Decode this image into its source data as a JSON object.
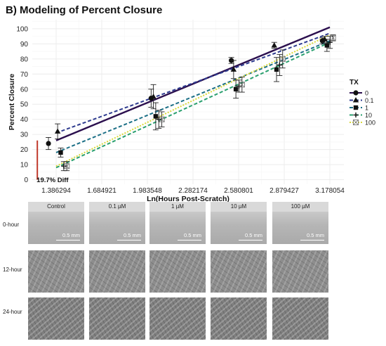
{
  "title": "B) Modeling of Percent Closure",
  "chart_data": {
    "type": "scatter",
    "xlabel": "Ln(Hours Post-Scratch)",
    "ylabel": "Percent Closure",
    "x_ticks": [
      "1.386294",
      "1.684921",
      "1.983548",
      "2.282174",
      "2.580801",
      "2.879427",
      "3.178054"
    ],
    "x_tick_values": [
      1.386294,
      1.684921,
      1.983548,
      2.282174,
      2.580801,
      2.879427,
      3.178054
    ],
    "y_ticks": [
      "0",
      "10",
      "20",
      "30",
      "40",
      "50",
      "60",
      "70",
      "80",
      "90",
      "100"
    ],
    "xlim": [
      1.23,
      3.27
    ],
    "ylim": [
      -3,
      106
    ],
    "grid": true,
    "legend_title": "TX",
    "legend_position": "right",
    "annotation": "19.7% Diff",
    "annotation_segment": {
      "x": 1.263,
      "y_from": 0,
      "y_to": 26
    },
    "series": [
      {
        "name": "0",
        "marker": "circle",
        "color": "#2b0f4e",
        "line_style": "solid",
        "fit": [
          [
            1.386294,
            26.0
          ],
          [
            3.178054,
            101.0
          ]
        ],
        "points": [
          {
            "x": 1.336,
            "y": 24,
            "err": 4
          },
          {
            "x": 2.008,
            "y": 54,
            "err": 6
          },
          {
            "x": 2.533,
            "y": 79,
            "err": 2
          },
          {
            "x": 3.129,
            "y": 92,
            "err": 2
          }
        ]
      },
      {
        "name": "0.1",
        "marker": "triangle",
        "color": "#2e3b8f",
        "line_style": "dashed",
        "fit": [
          [
            1.386294,
            31.0
          ],
          [
            3.178054,
            97.0
          ]
        ],
        "points": [
          {
            "x": 1.396,
            "y": 32,
            "err": 5
          },
          {
            "x": 2.023,
            "y": 55,
            "err": 8
          },
          {
            "x": 2.548,
            "y": 73,
            "err": 6
          },
          {
            "x": 2.814,
            "y": 89,
            "err": 2
          },
          {
            "x": 3.144,
            "y": 93,
            "err": 2
          }
        ]
      },
      {
        "name": "1",
        "marker": "square",
        "color": "#1b6f86",
        "line_style": "dashed",
        "fit": [
          [
            1.386294,
            18.0
          ],
          [
            3.178054,
            92.0
          ]
        ],
        "points": [
          {
            "x": 1.416,
            "y": 18,
            "err": 3
          },
          {
            "x": 2.038,
            "y": 42,
            "err": 9
          },
          {
            "x": 2.563,
            "y": 60,
            "err": 6
          },
          {
            "x": 2.829,
            "y": 73,
            "err": 8
          },
          {
            "x": 3.159,
            "y": 89,
            "err": 4
          }
        ]
      },
      {
        "name": "10",
        "marker": "plus",
        "color": "#2aa06f",
        "line_style": "dashed",
        "fit": [
          [
            1.386294,
            8.0
          ],
          [
            3.178054,
            91.0
          ]
        ],
        "points": [
          {
            "x": 1.436,
            "y": 9,
            "err": 3
          },
          {
            "x": 2.058,
            "y": 40,
            "err": 6
          },
          {
            "x": 2.583,
            "y": 62,
            "err": 4
          },
          {
            "x": 2.849,
            "y": 76,
            "err": 7
          },
          {
            "x": 3.179,
            "y": 91,
            "err": 4
          }
        ]
      },
      {
        "name": "100",
        "marker": "boxx",
        "color": "#d9d93a",
        "line_style": "dotted",
        "fit": [
          [
            1.386294,
            9.0
          ],
          [
            3.178054,
            96.0
          ]
        ],
        "points": [
          {
            "x": 1.456,
            "y": 9,
            "err": 3
          },
          {
            "x": 2.078,
            "y": 40,
            "err": 5
          },
          {
            "x": 2.603,
            "y": 63,
            "err": 5
          },
          {
            "x": 2.869,
            "y": 80,
            "err": 6
          },
          {
            "x": 3.199,
            "y": 94,
            "err": 2
          }
        ]
      }
    ]
  },
  "micrographs": {
    "columns": [
      "Control",
      "0.1 µM",
      "1 µM",
      "10 µM",
      "100 µM"
    ],
    "rows": [
      "0-hour",
      "12-hour",
      "24-hour"
    ],
    "scale_label": "0.5 mm"
  }
}
